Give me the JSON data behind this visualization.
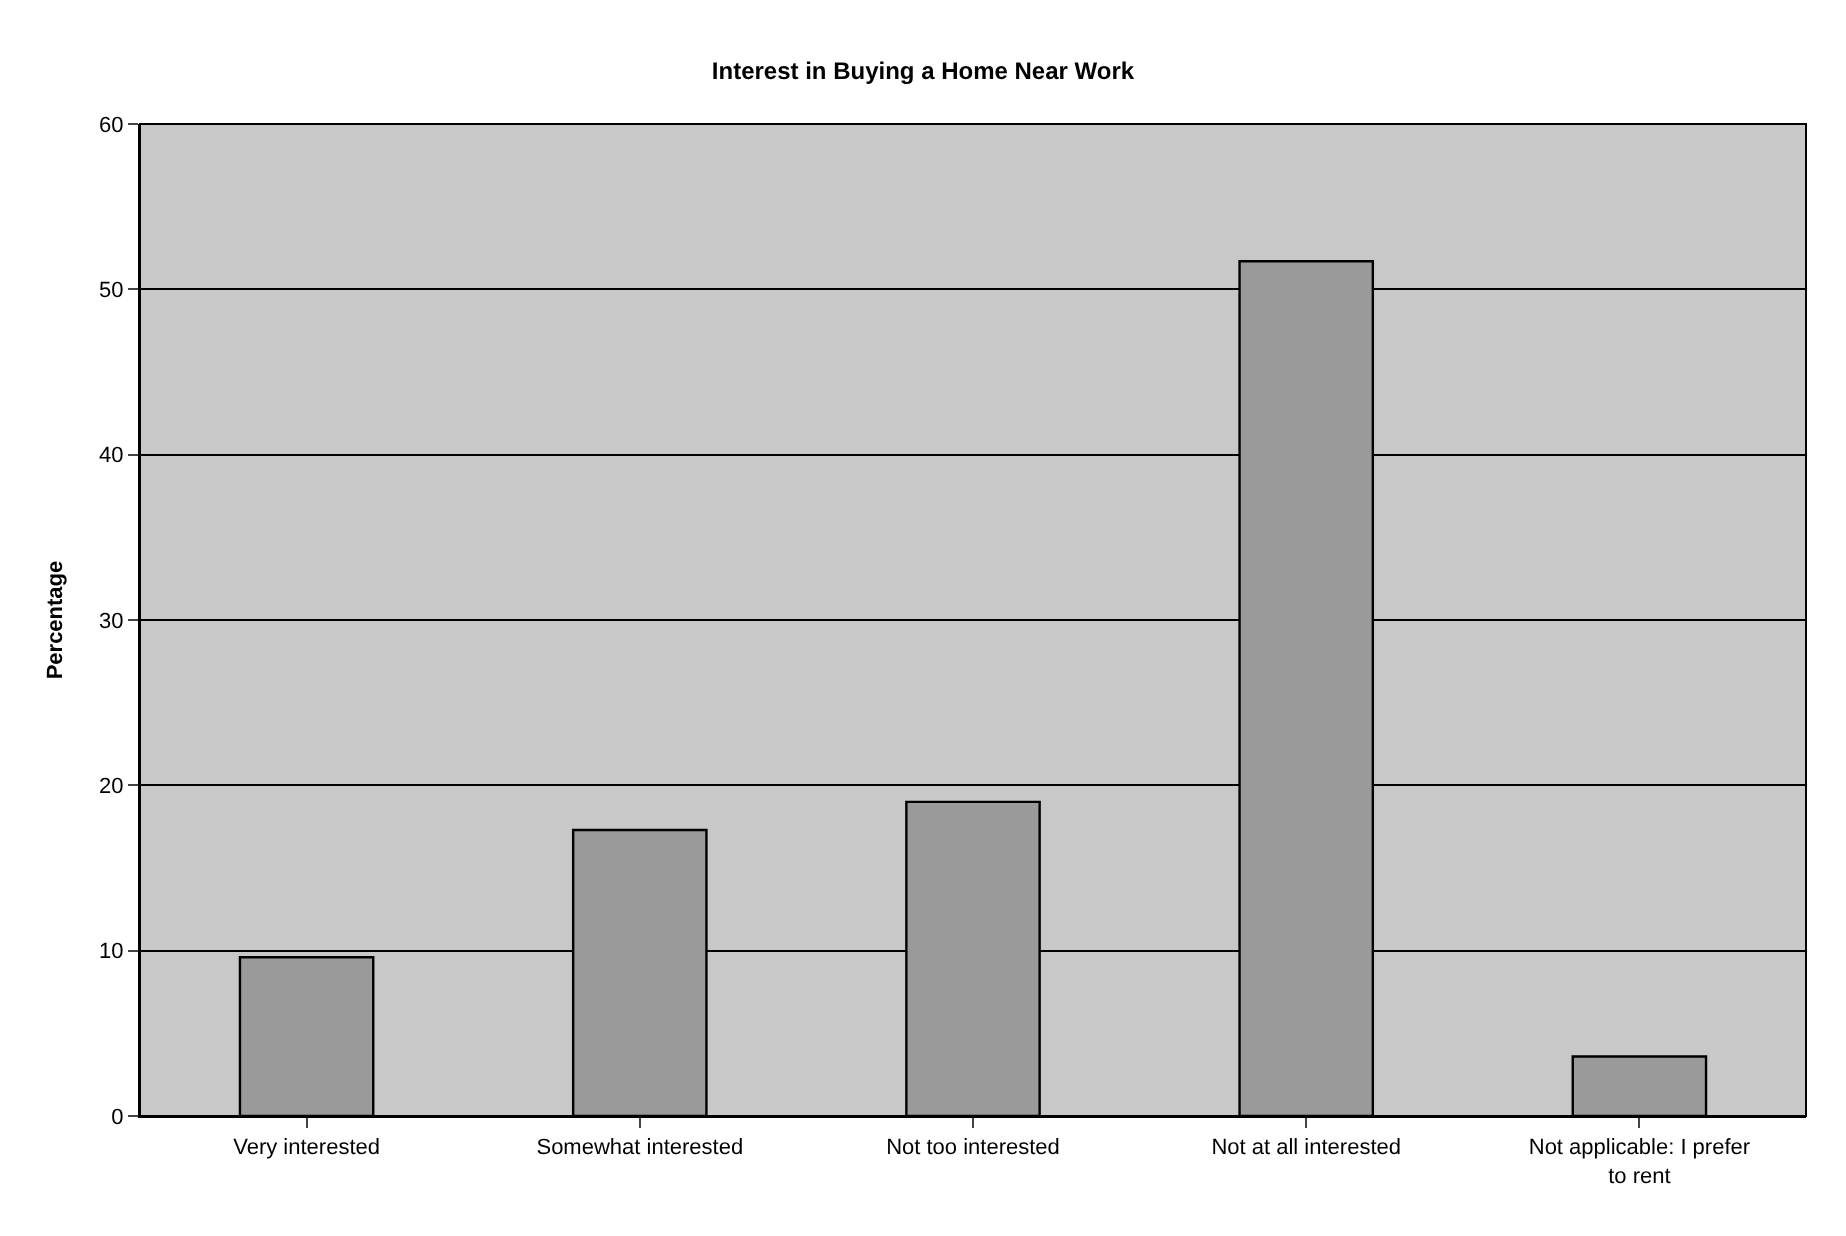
{
  "chart_data": {
    "type": "bar",
    "title": "Interest in Buying a Home Near Work",
    "ylabel": "Percentage",
    "categories": [
      "Very interested",
      "Somewhat interested",
      "Not too interested",
      "Not at all interested",
      "Not applicable: I prefer to rent"
    ],
    "values": [
      9.6,
      17.3,
      19.0,
      51.7,
      3.6
    ],
    "color": "#9a9a9a",
    "ylim": [
      0,
      60
    ],
    "yticks": [
      0,
      10,
      20,
      30,
      40,
      50,
      60
    ],
    "grid": "y",
    "legend": false
  }
}
